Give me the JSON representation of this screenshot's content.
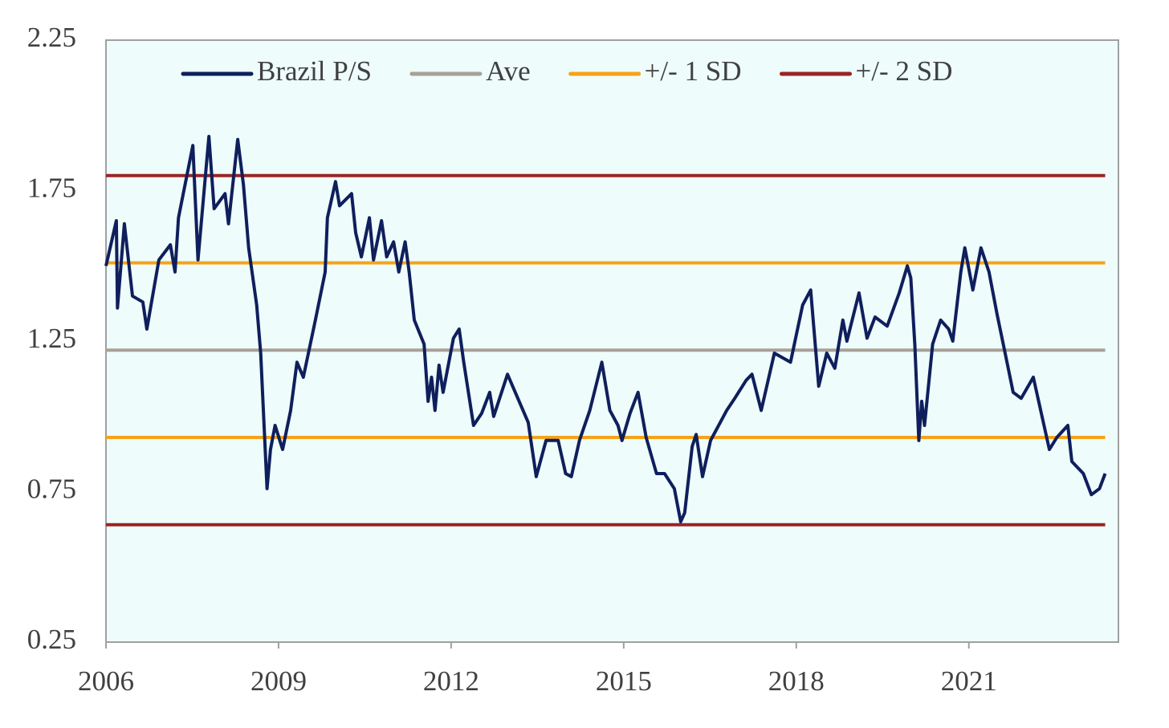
{
  "chart_data": {
    "type": "line",
    "xlim": [
      2006,
      2023.6
    ],
    "xticks": [
      2006,
      2009,
      2012,
      2015,
      2018,
      2021
    ],
    "ylim": [
      0.25,
      2.25
    ],
    "yticks": [
      0.25,
      0.75,
      1.25,
      1.75,
      2.25
    ],
    "grid": false,
    "legend": "top",
    "series": [
      {
        "name": "Brazil P/S",
        "color": "#0f1f5c",
        "x": [
          2006.0,
          2006.18,
          2006.2,
          2006.32,
          2006.46,
          2006.64,
          2006.71,
          2006.92,
          2007.12,
          2007.2,
          2007.26,
          2007.51,
          2007.6,
          2007.79,
          2007.88,
          2008.07,
          2008.13,
          2008.29,
          2008.39,
          2008.48,
          2008.62,
          2008.69,
          2008.8,
          2008.86,
          2008.94,
          2009.07,
          2009.21,
          2009.32,
          2009.43,
          2009.64,
          2009.81,
          2009.85,
          2009.99,
          2010.06,
          2010.27,
          2010.34,
          2010.44,
          2010.58,
          2010.65,
          2010.79,
          2010.88,
          2011.0,
          2011.09,
          2011.2,
          2011.27,
          2011.36,
          2011.53,
          2011.6,
          2011.66,
          2011.72,
          2011.79,
          2011.86,
          2012.04,
          2012.14,
          2012.22,
          2012.39,
          2012.53,
          2012.67,
          2012.74,
          2012.98,
          2013.16,
          2013.34,
          2013.48,
          2013.65,
          2013.86,
          2013.99,
          2014.09,
          2014.23,
          2014.41,
          2014.62,
          2014.76,
          2014.9,
          2014.97,
          2015.11,
          2015.25,
          2015.39,
          2015.57,
          2015.71,
          2015.88,
          2015.99,
          2016.06,
          2016.19,
          2016.26,
          2016.37,
          2016.51,
          2016.79,
          2016.93,
          2017.13,
          2017.23,
          2017.39,
          2017.62,
          2017.9,
          2018.11,
          2018.25,
          2018.39,
          2018.53,
          2018.67,
          2018.81,
          2018.88,
          2019.09,
          2019.23,
          2019.37,
          2019.58,
          2019.79,
          2019.93,
          2019.99,
          2020.06,
          2020.13,
          2020.18,
          2020.23,
          2020.37,
          2020.51,
          2020.65,
          2020.72,
          2020.86,
          2020.93,
          2021.07,
          2021.21,
          2021.35,
          2021.49,
          2021.63,
          2021.77,
          2021.91,
          2022.12,
          2022.26,
          2022.4,
          2022.53,
          2022.72,
          2022.79,
          2022.99,
          2023.13,
          2023.27,
          2023.37
        ],
        "values": [
          1.5,
          1.65,
          1.36,
          1.64,
          1.4,
          1.38,
          1.29,
          1.52,
          1.57,
          1.48,
          1.66,
          1.9,
          1.52,
          1.93,
          1.69,
          1.74,
          1.64,
          1.92,
          1.77,
          1.56,
          1.37,
          1.21,
          0.76,
          0.89,
          0.97,
          0.89,
          1.02,
          1.18,
          1.13,
          1.32,
          1.48,
          1.66,
          1.78,
          1.7,
          1.74,
          1.61,
          1.53,
          1.66,
          1.52,
          1.65,
          1.53,
          1.58,
          1.48,
          1.58,
          1.48,
          1.32,
          1.24,
          1.05,
          1.13,
          1.02,
          1.17,
          1.08,
          1.26,
          1.29,
          1.18,
          0.97,
          1.01,
          1.08,
          1.0,
          1.14,
          1.06,
          0.98,
          0.8,
          0.92,
          0.92,
          0.81,
          0.8,
          0.92,
          1.02,
          1.18,
          1.02,
          0.97,
          0.92,
          1.01,
          1.08,
          0.93,
          0.81,
          0.81,
          0.76,
          0.65,
          0.68,
          0.9,
          0.94,
          0.8,
          0.92,
          1.02,
          1.06,
          1.12,
          1.14,
          1.02,
          1.21,
          1.18,
          1.37,
          1.42,
          1.1,
          1.21,
          1.16,
          1.32,
          1.25,
          1.41,
          1.26,
          1.33,
          1.3,
          1.41,
          1.5,
          1.46,
          1.24,
          0.92,
          1.05,
          0.97,
          1.24,
          1.32,
          1.29,
          1.25,
          1.48,
          1.56,
          1.42,
          1.56,
          1.48,
          1.34,
          1.21,
          1.08,
          1.06,
          1.13,
          1.01,
          0.89,
          0.93,
          0.97,
          0.85,
          0.81,
          0.74,
          0.76,
          0.81
        ]
      },
      {
        "name": "Ave",
        "color": "#a8a196",
        "levels": [
          1.22
        ]
      },
      {
        "name": "+/- 1 SD",
        "color": "#f5a31a",
        "levels": [
          1.51,
          0.93
        ]
      },
      {
        "name": "+/- 2 SD",
        "color": "#9b2424",
        "levels": [
          1.8,
          0.64
        ]
      }
    ]
  }
}
